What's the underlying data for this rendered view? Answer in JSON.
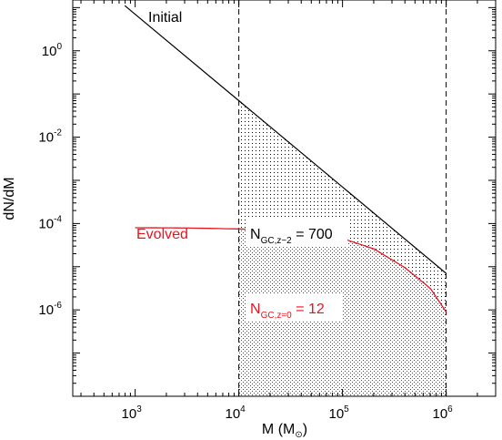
{
  "chart_data": {
    "type": "line",
    "xlabel": "M (M",
    "xlabel_unit_symbol": "⊙",
    "xlabel_close": ")",
    "ylabel": "dN/dM",
    "xscale": "log",
    "yscale": "log",
    "xlim": [
      250,
      3000000
    ],
    "ylim": [
      1e-08,
      15
    ],
    "x_ticks": [
      {
        "base": "10",
        "exp": "3",
        "value": 1000
      },
      {
        "base": "10",
        "exp": "4",
        "value": 10000
      },
      {
        "base": "10",
        "exp": "5",
        "value": 100000
      },
      {
        "base": "10",
        "exp": "6",
        "value": 1000000
      }
    ],
    "y_ticks": [
      {
        "base": "10",
        "exp": "0",
        "value": 1
      },
      {
        "base": "10",
        "exp": "-2",
        "value": 0.01
      },
      {
        "base": "10",
        "exp": "-4",
        "value": 0.0001
      },
      {
        "base": "10",
        "exp": "-6",
        "value": 1e-06
      }
    ],
    "vertical_lines": [
      10000,
      1000000
    ],
    "series": [
      {
        "name": "Initial",
        "color": "#000000",
        "x": [
          1000,
          10000,
          100000,
          1000000
        ],
        "y": [
          7.0,
          0.07,
          0.0007,
          7e-06
        ]
      },
      {
        "name": "Evolved",
        "color": "#e8141e",
        "x": [
          1000,
          3000,
          10000,
          30000,
          100000,
          200000,
          400000,
          700000,
          1000000
        ],
        "y": [
          8e-05,
          7.9e-05,
          7.5e-05,
          6.7e-05,
          4.5e-05,
          2.6e-05,
          9.5e-06,
          3.2e-06,
          9e-07
        ]
      }
    ],
    "annotations": [
      {
        "name": "n-gc-initial",
        "main": "N",
        "sub": "GC,z~2",
        "rest": " = 700",
        "color": "#000000"
      },
      {
        "name": "n-gc-evolved",
        "main": "N",
        "sub": "GC,z=0",
        "rest": " = 12",
        "color": "#e8141e"
      }
    ]
  }
}
